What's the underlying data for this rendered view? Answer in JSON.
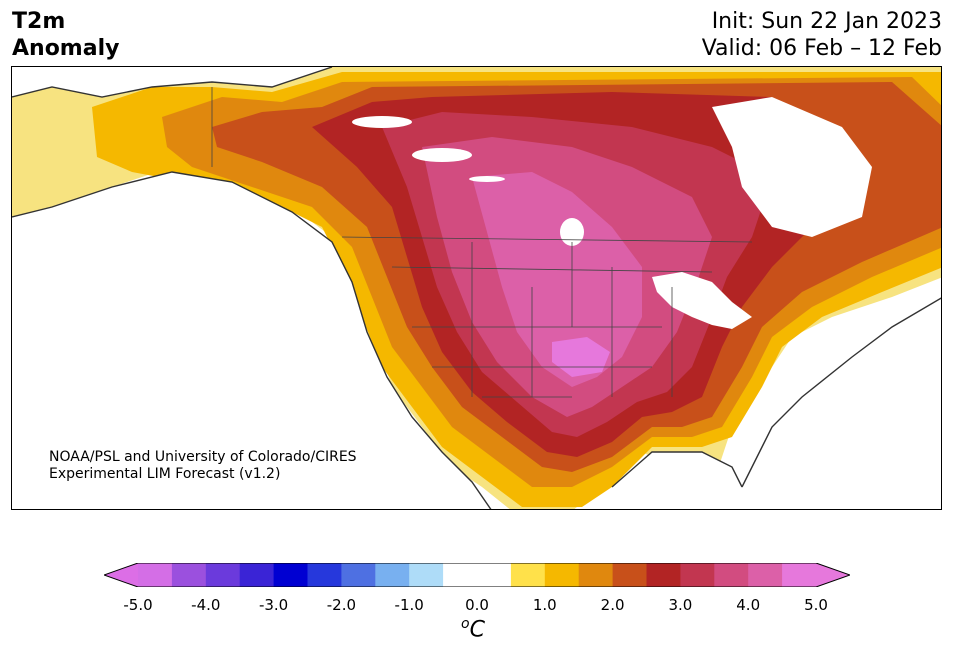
{
  "title": {
    "left_line1": "T2m",
    "left_line2": "Anomaly",
    "right_line1": "Init: Sun 22 Jan 2023",
    "right_line2": "Valid: 06 Feb – 12 Feb"
  },
  "credit": {
    "line1": "NOAA/PSL and University of Colorado/CIRES",
    "line2": "Experimental LIM Forecast (v1.2)"
  },
  "colorbar": {
    "unit_base": "C",
    "unit_sup": "o",
    "ticks": [
      "-5.0",
      "-4.0",
      "-3.0",
      "-2.0",
      "-1.0",
      "0.0",
      "1.0",
      "2.0",
      "3.0",
      "4.0",
      "5.0"
    ],
    "under_color": "#dc6ee6",
    "over_color": "#e678dc",
    "colors": [
      "#d46ee6",
      "#9b50de",
      "#6b3adc",
      "#3a24d6",
      "#0000d2",
      "#2638dc",
      "#4e70e2",
      "#78b0f0",
      "#aedcf8",
      "#ffffff",
      "#ffffff",
      "#ffe14a",
      "#f5b800",
      "#e0880e",
      "#c8501a",
      "#b22424",
      "#c23650",
      "#d24c80",
      "#dc60a8",
      "#e678dc"
    ]
  }
}
